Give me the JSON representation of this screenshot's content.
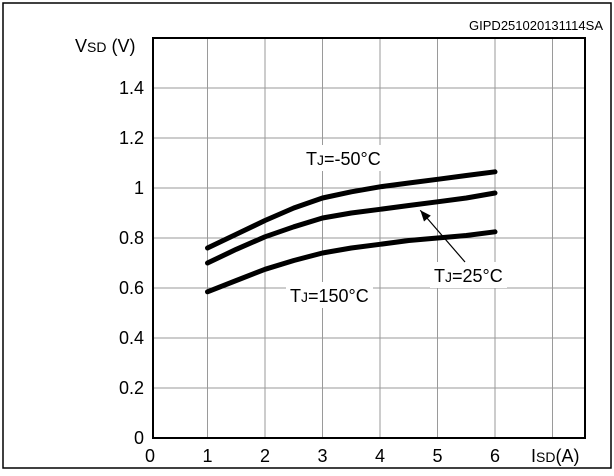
{
  "figure_id": "GIPD251020131114SA",
  "chart_data": {
    "type": "line",
    "ylabel": "VSD (V)",
    "ylabel_main": "V",
    "ylabel_sub": "SD",
    "ylabel_unit": " (V)",
    "xlabel": "ISD(A)",
    "xlabel_main": "I",
    "xlabel_sub": "SD",
    "xlabel_unit": "(A)",
    "xlim": [
      0,
      6.75
    ],
    "ylim": [
      0,
      1.6
    ],
    "x_ticks": [
      "0",
      "1",
      "2",
      "3",
      "4",
      "5",
      "6"
    ],
    "y_ticks": [
      "0",
      "0.2",
      "0.4",
      "0.6",
      "0.8",
      "1",
      "1.2",
      "1.4"
    ],
    "grid": true,
    "series": [
      {
        "name": "TJ=-50°C",
        "label_main": "T",
        "label_sub": "J",
        "label_rest": "=-50°C",
        "x": [
          1,
          1.5,
          2,
          2.5,
          3,
          3.5,
          4,
          4.5,
          5,
          5.5,
          6
        ],
        "y": [
          0.76,
          0.815,
          0.87,
          0.92,
          0.96,
          0.985,
          1.005,
          1.02,
          1.035,
          1.05,
          1.065
        ]
      },
      {
        "name": "TJ=25°C",
        "label_main": "T",
        "label_sub": "J",
        "label_rest": "=25°C",
        "x": [
          1,
          1.5,
          2,
          2.5,
          3,
          3.5,
          4,
          4.5,
          5,
          5.5,
          6
        ],
        "y": [
          0.7,
          0.755,
          0.805,
          0.845,
          0.88,
          0.9,
          0.915,
          0.93,
          0.945,
          0.96,
          0.98
        ]
      },
      {
        "name": "TJ=150°C",
        "label_main": "T",
        "label_sub": "J",
        "label_rest": "=150°C",
        "x": [
          1,
          1.5,
          2,
          2.5,
          3,
          3.5,
          4,
          4.5,
          5,
          5.5,
          6
        ],
        "y": [
          0.585,
          0.63,
          0.675,
          0.71,
          0.74,
          0.76,
          0.775,
          0.79,
          0.8,
          0.81,
          0.825
        ]
      }
    ]
  }
}
